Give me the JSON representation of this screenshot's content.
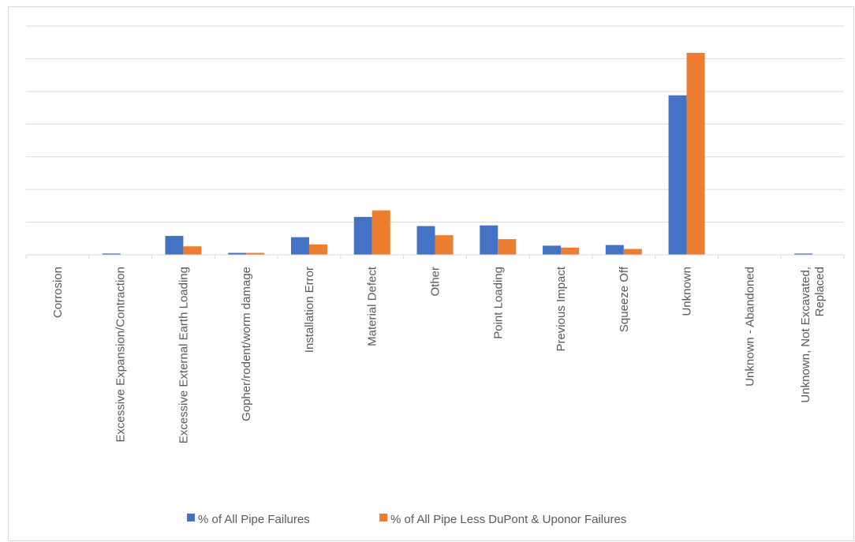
{
  "chart_data": {
    "type": "bar",
    "categories": [
      "Corrosion",
      "Excessive Expansion/Contraction",
      "Excessive External Earth Loading",
      "Gopher/rodent/worm damage",
      "Installation Error",
      "Material Defect",
      "Other",
      "Point Loading",
      "Previous Impact",
      "Squeeze Off",
      "Unknown",
      "Unknown - Abandoned",
      "Unknown, Not Excavated, Replaced"
    ],
    "series": [
      {
        "name": "% of All Pipe Failures",
        "color": "#4472C4",
        "values": [
          0,
          0.2,
          2.9,
          0.3,
          2.7,
          5.8,
          4.4,
          4.5,
          1.4,
          1.5,
          24.4,
          0,
          0.2
        ]
      },
      {
        "name": "% of All Pipe Less DuPont & Uponor Failures",
        "color": "#ED7D31",
        "values": [
          0,
          0,
          1.3,
          0.3,
          1.6,
          6.8,
          3.0,
          2.4,
          1.1,
          0.9,
          30.9,
          0,
          0
        ]
      }
    ],
    "ylim": [
      0,
      35
    ],
    "grid": true,
    "legend_position": "bottom"
  }
}
